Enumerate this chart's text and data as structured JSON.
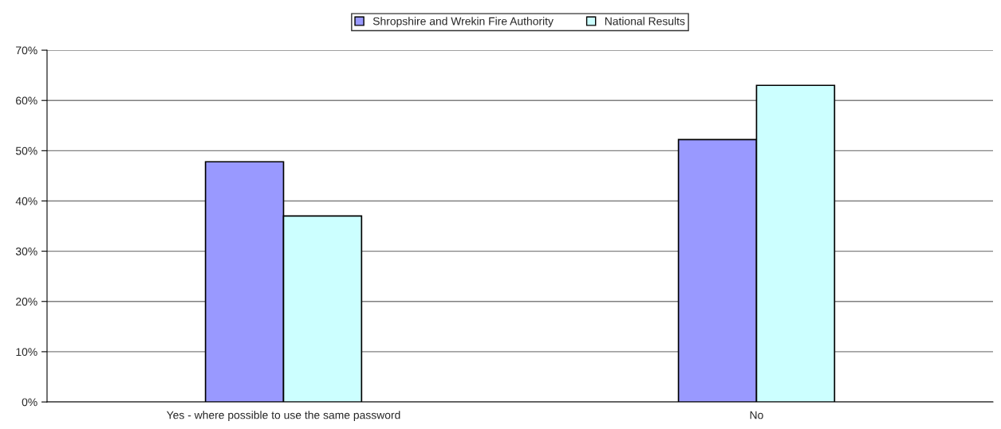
{
  "chart_data": {
    "type": "bar",
    "categories": [
      "Yes - where possible to use the same password",
      "No"
    ],
    "series": [
      {
        "name": "Shropshire and Wrekin Fire Authority",
        "color": "#9999ff",
        "values": [
          47.8,
          52.2
        ]
      },
      {
        "name": "National Results",
        "color": "#ccffff",
        "values": [
          37.0,
          63.0
        ]
      }
    ],
    "ylim": [
      0,
      70
    ],
    "yticks": [
      {
        "value": 0,
        "label": "0%"
      },
      {
        "value": 10,
        "label": "10%"
      },
      {
        "value": 20,
        "label": "20%"
      },
      {
        "value": 30,
        "label": "30%"
      },
      {
        "value": 40,
        "label": "40%"
      },
      {
        "value": 50,
        "label": "50%"
      },
      {
        "value": 60,
        "label": "60%"
      },
      {
        "value": 70,
        "label": "70%"
      }
    ],
    "grid": "y",
    "legend": "top"
  }
}
